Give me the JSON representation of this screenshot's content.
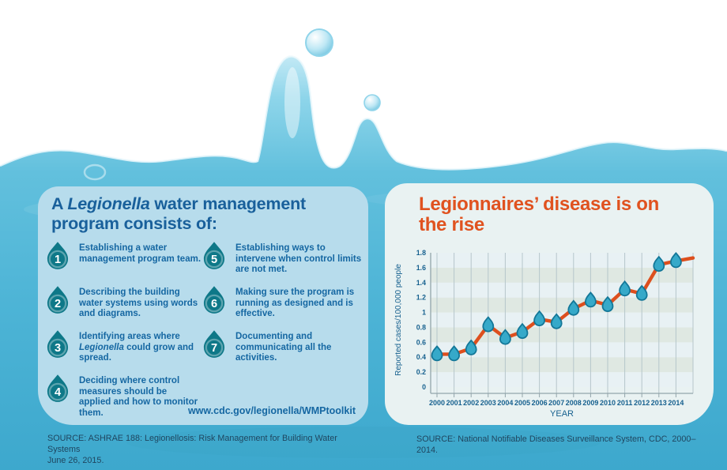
{
  "colors": {
    "heading_blue": "#19609b",
    "step_text_blue": "#1567a2",
    "accent_orange": "#e0521f",
    "drop_teal": "#0e7888",
    "marker_teal": "#36a9c9",
    "marker_stroke": "#137798",
    "water_turquoise": "#4db4d6",
    "left_panel_bg": "#b7dcec",
    "right_panel_bg": "#e9f2f2"
  },
  "left_panel": {
    "title": {
      "pre": "A ",
      "italic": "Legionella",
      "post": " water management program consists of:"
    },
    "steps": [
      {
        "num": "1",
        "pre": "Establishing a water management program team.",
        "italic": "",
        "post": ""
      },
      {
        "num": "2",
        "pre": "Describing the building water systems using words and diagrams.",
        "italic": "",
        "post": ""
      },
      {
        "num": "3",
        "pre": "Identifying areas where ",
        "italic": "Legionella",
        "post": " could grow and spread."
      },
      {
        "num": "4",
        "pre": "Deciding where control measures should be applied and how to monitor them.",
        "italic": "",
        "post": ""
      },
      {
        "num": "5",
        "pre": "Establishing ways to intervene when control limits are not met.",
        "italic": "",
        "post": ""
      },
      {
        "num": "6",
        "pre": "Making sure the program is running as designed and is effective.",
        "italic": "",
        "post": ""
      },
      {
        "num": "7",
        "pre": "Documenting and communicating all the activities.",
        "italic": "",
        "post": ""
      }
    ],
    "url": "www.cdc.gov/legionella/WMPtoolkit"
  },
  "right_panel": {
    "title": "Legionnaires’ disease is on the rise"
  },
  "footer": {
    "left_source_line1": "SOURCE: ASHRAE 188: Legionellosis: Risk Management for Building Water Systems",
    "left_source_line2": "June 26, 2015.",
    "right_source": "SOURCE: National Notifiable Diseases Surveillance System, CDC, 2000–2014."
  },
  "chart_data": {
    "type": "line",
    "title": "Legionnaires’ disease is on the rise",
    "x": [
      "2000",
      "2001",
      "2002",
      "2003",
      "2004",
      "2005",
      "2006",
      "2007",
      "2008",
      "2009",
      "2010",
      "2011",
      "2012",
      "2013",
      "2014"
    ],
    "series": [
      {
        "name": "Reported cases/100,000 people",
        "values": [
          0.44,
          0.44,
          0.52,
          0.83,
          0.66,
          0.74,
          0.91,
          0.87,
          1.05,
          1.16,
          1.1,
          1.31,
          1.25,
          1.64,
          1.69
        ]
      }
    ],
    "trend_extension_value": 1.73,
    "xlabel": "YEAR",
    "ylabel": "Reported cases/100,000 people",
    "ylim": [
      0,
      1.8
    ],
    "yticks": [
      "0",
      "0.2",
      "0.4",
      "0.6",
      "0.8",
      "1",
      "1.2",
      "1.4",
      "1.6",
      "1.8"
    ],
    "grid": "vertical-on, horizontal-bands",
    "legend": "none",
    "line_color": "#dd4f1e",
    "marker": "water-drop",
    "marker_color": "#36a9c9",
    "marker_stroke": "#137798",
    "band_colors": [
      "#e8f1f4",
      "#dfe8e2"
    ],
    "grid_color": "#b6c6cb",
    "axis_color": "#93a5ab",
    "tick_label_color": "#17618f"
  }
}
